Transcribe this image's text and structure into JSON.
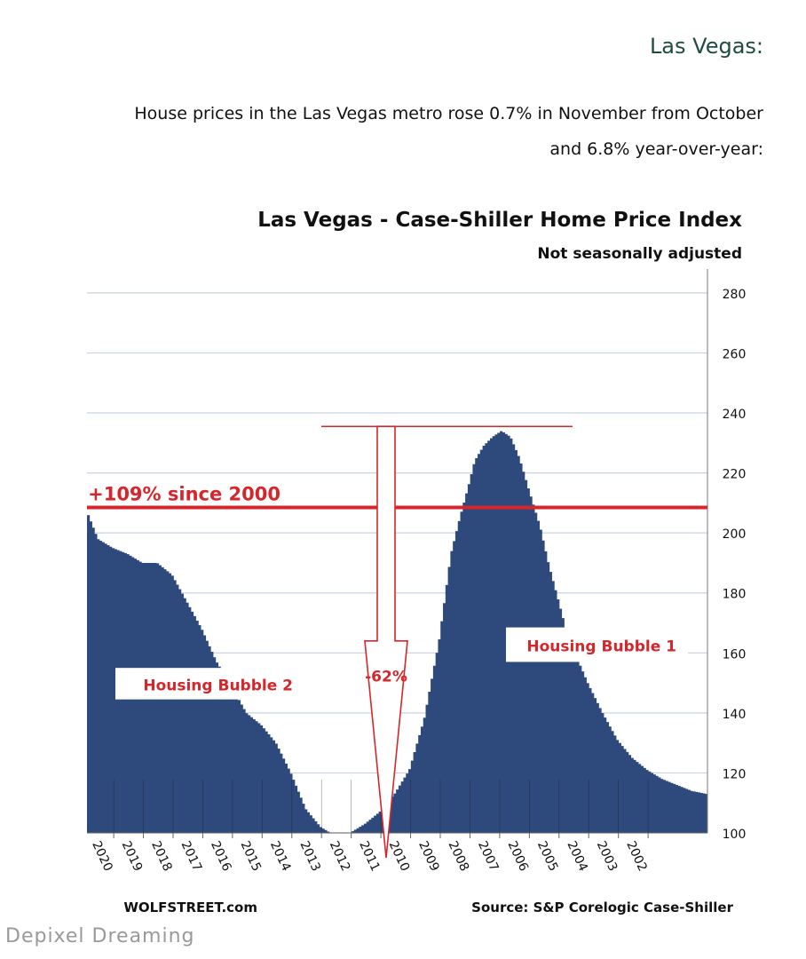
{
  "article": {
    "heading": "Las Vegas:",
    "line1": "House prices in the Las Vegas metro rose 0.7% in November from October",
    "line2": "and 6.8% year-over-year:"
  },
  "watermark": "Depixel Dreaming",
  "colors": {
    "bars": "#2e4a7c",
    "red": "#d7262b",
    "grid": "#c9d3e0",
    "text": "#111111"
  },
  "chart_data": {
    "type": "bar",
    "title": "Las Vegas - Case-Shiller Home Price Index",
    "subtitle": "Not seasonally adjusted",
    "mirrored": true,
    "x_axis": {
      "ticks": [
        "2002",
        "2003",
        "2004",
        "2005",
        "2006",
        "2007",
        "2008",
        "2009",
        "2010",
        "2011",
        "2012",
        "2013",
        "2014",
        "2015",
        "2016",
        "2017",
        "2018",
        "2019",
        "2020"
      ],
      "range": [
        2000.0,
        2020.9
      ]
    },
    "y_axis": {
      "ticks": [
        100,
        120,
        140,
        160,
        180,
        200,
        220,
        240,
        260,
        280
      ],
      "ylim": [
        100,
        285
      ],
      "position": "right"
    },
    "series": [
      {
        "x": [
          2000.0,
          2000.5,
          2001.0,
          2001.5,
          2002.0,
          2002.5,
          2003.0,
          2003.5,
          2004.0,
          2004.3,
          2004.6,
          2005.0,
          2005.3,
          2005.6,
          2006.0,
          2006.3,
          2006.6,
          2006.9,
          2007.2,
          2007.5,
          2007.8,
          2008.0,
          2008.3,
          2008.6,
          2009.0,
          2009.5,
          2010.0,
          2010.5,
          2011.0,
          2011.5,
          2012.0,
          2012.5,
          2013.0,
          2013.5,
          2014.0,
          2014.5,
          2015.0,
          2015.5,
          2016.0,
          2016.5,
          2017.0,
          2017.5,
          2018.0,
          2018.5,
          2019.0,
          2019.5,
          2020.0,
          2020.5,
          2020.9
        ],
        "values": [
          113,
          114,
          116,
          118,
          121,
          125,
          131,
          140,
          150,
          157,
          163,
          178,
          189,
          202,
          215,
          225,
          232,
          234,
          232,
          229,
          224,
          216,
          205,
          193,
          164,
          138,
          121,
          113,
          107,
          103,
          100,
          99,
          102,
          108,
          120,
          130,
          136,
          140,
          149,
          157,
          168,
          177,
          186,
          190,
          190,
          193,
          195,
          198,
          208
        ]
      }
    ],
    "reference_line": {
      "value": 208.5,
      "label": "+109% since 2000"
    },
    "annotations": [
      {
        "text": "Housing Bubble 1"
      },
      {
        "text": "Housing Bubble 2"
      },
      {
        "text": "-62%"
      }
    ],
    "source": "Source: S&P Corelogic Case-Shiller",
    "brand": "WOLFSTREET.com"
  }
}
